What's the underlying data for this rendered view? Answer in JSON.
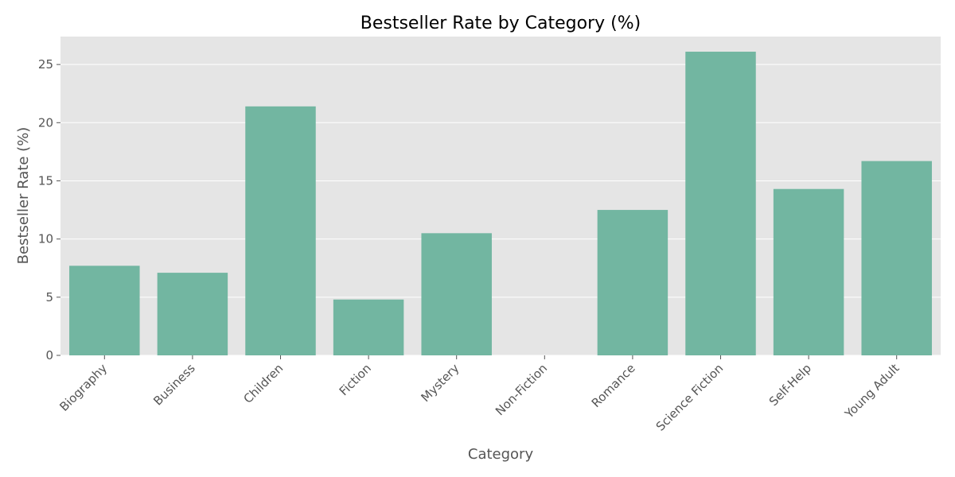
{
  "chart_data": {
    "type": "bar",
    "title": "Bestseller Rate by Category (%)",
    "xlabel": "Category",
    "ylabel": "Bestseller Rate (%)",
    "categories": [
      "Biography",
      "Business",
      "Children",
      "Fiction",
      "Mystery",
      "Non-Fiction",
      "Romance",
      "Science Fiction",
      "Self-Help",
      "Young Adult"
    ],
    "values": [
      7.7,
      7.1,
      21.4,
      4.8,
      10.5,
      0.0,
      12.5,
      26.1,
      14.3,
      16.7
    ],
    "ylim": [
      0,
      27.4
    ],
    "yticks": [
      0,
      5,
      10,
      15,
      20,
      25
    ],
    "grid": true,
    "legend": "none",
    "colors": {
      "bar": "#72b6a1",
      "plot_background": "#e5e5e5",
      "grid": "#ffffff",
      "text": "#555555"
    }
  }
}
